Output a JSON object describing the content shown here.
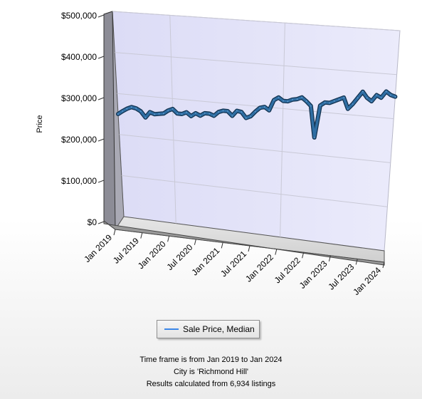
{
  "chart_data": {
    "type": "line",
    "title": "",
    "ylabel": "Price",
    "xlabel": "",
    "ylim": [
      0,
      500000
    ],
    "y_ticks": [
      {
        "value": 0,
        "label": "$0"
      },
      {
        "value": 100000,
        "label": "$100,000"
      },
      {
        "value": 200000,
        "label": "$200,000"
      },
      {
        "value": 300000,
        "label": "$300,000"
      },
      {
        "value": 400000,
        "label": "$400,000"
      },
      {
        "value": 500000,
        "label": "$500,000"
      }
    ],
    "x_ticks": [
      {
        "month": 0,
        "label": "Jan 2019"
      },
      {
        "month": 6,
        "label": "Jul 2019"
      },
      {
        "month": 12,
        "label": "Jan 2020"
      },
      {
        "month": 18,
        "label": "Jul 2020"
      },
      {
        "month": 24,
        "label": "Jan 2021"
      },
      {
        "month": 30,
        "label": "Jul 2021"
      },
      {
        "month": 36,
        "label": "Jan 2022"
      },
      {
        "month": 42,
        "label": "Jul 2022"
      },
      {
        "month": 48,
        "label": "Jan 2023"
      },
      {
        "month": 54,
        "label": "Jul 2023"
      },
      {
        "month": 60,
        "label": "Jan 2024"
      }
    ],
    "grid": true,
    "style": "3d",
    "series": [
      {
        "name": "Sale Price, Median",
        "color": "#2f6ea3",
        "x": [
          "2019-01",
          "2019-02",
          "2019-03",
          "2019-04",
          "2019-05",
          "2019-06",
          "2019-07",
          "2019-08",
          "2019-09",
          "2019-10",
          "2019-11",
          "2019-12",
          "2020-01",
          "2020-02",
          "2020-03",
          "2020-04",
          "2020-05",
          "2020-06",
          "2020-07",
          "2020-08",
          "2020-09",
          "2020-10",
          "2020-11",
          "2020-12",
          "2021-01",
          "2021-02",
          "2021-03",
          "2021-04",
          "2021-05",
          "2021-06",
          "2021-07",
          "2021-08",
          "2021-09",
          "2021-10",
          "2021-11",
          "2021-12",
          "2022-01",
          "2022-02",
          "2022-03",
          "2022-04",
          "2022-05",
          "2022-06",
          "2022-07",
          "2022-08",
          "2022-09",
          "2022-10",
          "2022-11",
          "2022-12",
          "2023-01",
          "2023-02",
          "2023-03",
          "2023-04",
          "2023-05",
          "2023-06",
          "2023-07",
          "2023-08",
          "2023-09",
          "2023-10",
          "2023-11",
          "2023-12",
          "2024-01"
        ],
        "values": [
          250000,
          258000,
          265000,
          270000,
          268000,
          262000,
          248000,
          262000,
          258000,
          260000,
          262000,
          270000,
          275000,
          265000,
          265000,
          270000,
          262000,
          270000,
          265000,
          272000,
          272000,
          268000,
          278000,
          282000,
          282000,
          272000,
          285000,
          283000,
          270000,
          275000,
          287000,
          297000,
          300000,
          293000,
          318000,
          325000,
          318000,
          318000,
          323000,
          325000,
          330000,
          322000,
          312000,
          240000,
          315000,
          323000,
          323000,
          328000,
          333000,
          338000,
          313000,
          325000,
          340000,
          355000,
          342000,
          335000,
          350000,
          345000,
          360000,
          353000,
          350000
        ]
      }
    ]
  },
  "legend": {
    "label": "Sale Price, Median"
  },
  "footer": {
    "line1": "Time frame is from Jan 2019 to Jan 2024",
    "line2": "City is 'Richmond Hill'",
    "line3": "Results calculated from 6,934 listings"
  }
}
